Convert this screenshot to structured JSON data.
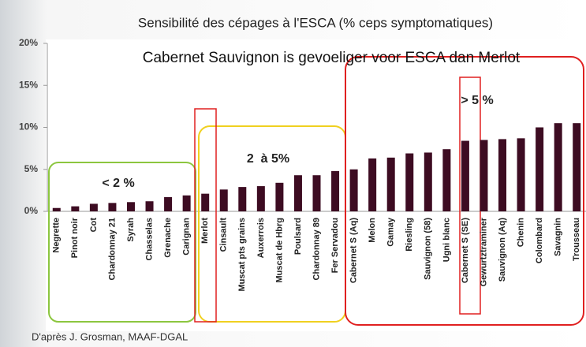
{
  "chart_data": {
    "type": "bar",
    "title": "Sensibilité des cépages à l'ESCA (% ceps symptomatiques)",
    "headline": "Cabernet Sauvignon is gevoeliger voor ESCA dan Merlot",
    "annotations": [
      "< 2 %",
      "2  à 5%",
      "> 5 %"
    ],
    "source": "D'après J. Grosman, MAAF-DGAL",
    "categories": [
      "Negrette",
      "Pinot noir",
      "Cot",
      "Chardonnay 21",
      "Syrah",
      "Chasselas",
      "Grenache",
      "Carignan",
      "Merlot",
      "Cinsault",
      "Muscat pts grains",
      "Auxerrois",
      "Muscat de Hbrg",
      "Poulsard",
      "Chardonnay 89",
      "Fer Servadou",
      "Cabernet S (Aq)",
      "Melon",
      "Gamay",
      "Riesling",
      "Sauvignon (58)",
      "Ugni blanc",
      "Cabernet S (SE)",
      "Gewurtztraminer",
      "Sauvignon (Aq)",
      "Chenin",
      "Colombard",
      "Savagnin",
      "Trousseau"
    ],
    "values": [
      0.4,
      0.6,
      0.9,
      1.0,
      1.1,
      1.2,
      1.7,
      1.9,
      2.1,
      2.6,
      2.9,
      3.0,
      3.4,
      4.3,
      4.3,
      4.8,
      5.0,
      6.3,
      6.4,
      6.9,
      7.0,
      7.4,
      8.4,
      8.5,
      8.6,
      8.7,
      10.0,
      10.5,
      10.5
    ],
    "color": "#3d0c22",
    "ylim": [
      0,
      20
    ],
    "yticks": [
      {
        "value": 0,
        "label": "0%"
      },
      {
        "value": 5,
        "label": "5%"
      },
      {
        "value": 10,
        "label": "10%"
      },
      {
        "value": 15,
        "label": "15%"
      },
      {
        "value": 20,
        "label": "20%"
      }
    ]
  }
}
